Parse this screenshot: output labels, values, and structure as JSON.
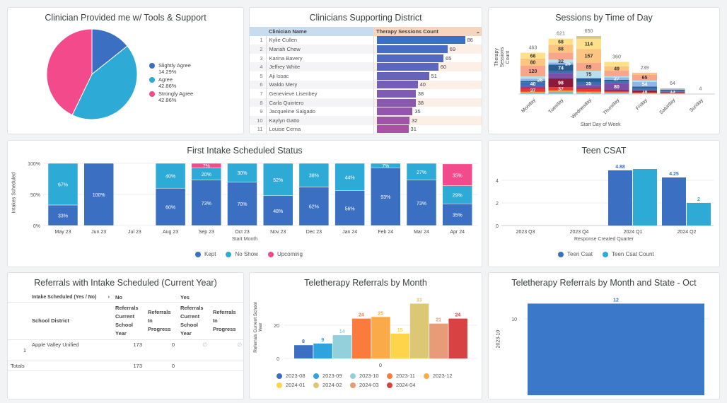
{
  "pie": {
    "title": "Clinician Provided me w/ Tools & Support",
    "slices": [
      {
        "label": "Slightly Agree",
        "pct": "14.29%",
        "value": 14.29,
        "color": "#3b6fc1"
      },
      {
        "label": "Agree",
        "pct": "42.86%",
        "value": 42.86,
        "color": "#2eaad6"
      },
      {
        "label": "Strongly Agree",
        "pct": "42.86%",
        "value": 42.86,
        "color": "#f24a8b"
      }
    ]
  },
  "clinicians": {
    "title": "Clinicians Supporting District",
    "col_name": "Clinician Name",
    "col_count": "Therapy Sessions Count",
    "sort_icon": "chevron-down-icon",
    "rows": [
      [
        "1",
        "Kylie Cullen",
        86
      ],
      [
        "2",
        "Mariah Chew",
        69
      ],
      [
        "3",
        "Karina Bavery",
        65
      ],
      [
        "4",
        "Jeffrey White",
        60
      ],
      [
        "5",
        "Aji Issac",
        51
      ],
      [
        "6",
        "Waldo Mery",
        40
      ],
      [
        "7",
        "Genevieve Lisenbey",
        38
      ],
      [
        "8",
        "Carla Quintero",
        38
      ],
      [
        "9",
        "Jacqueline Salgado",
        35
      ],
      [
        "10",
        "Kaylyn Gatto",
        32
      ],
      [
        "11",
        "Louise Cerna",
        31
      ]
    ]
  },
  "sessions": {
    "title": "Sessions by Time of Day",
    "ylabel": "Therapy Sessions Count",
    "xlabel": "Start Day of Week",
    "chart_data": {
      "type": "bar",
      "stacked": true,
      "categories": [
        "Monday",
        "Tuesday",
        "Wednesday",
        "Thursday",
        "Friday",
        "Saturday",
        "Sunday"
      ],
      "totals": [
        463,
        621,
        650,
        360,
        239,
        64,
        4
      ],
      "palette": [
        "#4fc3f7",
        "#f9a03f",
        "#e53935",
        "#8b1a3a",
        "#7b4fa8",
        "#3a6fb5",
        "#2a5d8f",
        "#8fb8e8",
        "#b9dfee",
        "#f8a58a",
        "#fbc480",
        "#fde08a",
        "#d9c77a"
      ],
      "segments": [
        [
          15,
          10,
          37,
          10,
          22,
          40,
          12,
          26,
          25,
          120,
          80,
          66,
          0
        ],
        [
          20,
          20,
          37,
          98,
          60,
          20,
          74,
          25,
          32,
          79,
          88,
          68,
          0
        ],
        [
          16,
          10,
          34,
          10,
          30,
          35,
          40,
          10,
          75,
          89,
          157,
          114,
          30
        ],
        [
          10,
          10,
          10,
          15,
          80,
          15,
          20,
          27,
          12,
          62,
          49,
          50,
          0
        ],
        [
          5,
          5,
          10,
          18,
          10,
          20,
          15,
          54,
          15,
          65,
          22,
          0,
          0
        ],
        [
          3,
          3,
          10,
          5,
          5,
          13,
          10,
          5,
          0,
          10,
          0,
          0,
          0
        ],
        [
          0,
          0,
          0,
          0,
          0,
          0,
          0,
          4,
          0,
          0,
          0,
          0,
          0
        ]
      ],
      "shown_labels": [
        [
          2,
          5,
          7,
          9,
          10,
          11
        ],
        [
          2,
          3,
          6,
          7,
          8,
          10,
          11
        ],
        [
          0,
          5,
          8,
          9,
          10,
          11
        ],
        [
          4,
          7,
          10
        ],
        [
          3,
          7,
          9
        ],
        [
          5
        ],
        []
      ]
    }
  },
  "intake": {
    "title": "First Intake Scheduled Status",
    "ylabel": "Intakes Scheduled",
    "xlabel": "Start Month",
    "yticks": [
      "100%",
      "50%",
      "0%"
    ],
    "chart_data": {
      "type": "bar",
      "stacked": true,
      "categories": [
        "May 23",
        "Jun 23",
        "Jul 23",
        "Aug 23",
        "Sep 23",
        "Oct 23",
        "Nov 23",
        "Dec 23",
        "Jan 24",
        "Feb 24",
        "Mar 24",
        "Apr 24"
      ],
      "series": [
        {
          "name": "Kept",
          "color": "#3b6fc1",
          "values": [
            33,
            100,
            0,
            60,
            73,
            70,
            48,
            62,
            56,
            93,
            73,
            35
          ]
        },
        {
          "name": "No Show",
          "color": "#2eaad6",
          "values": [
            67,
            0,
            0,
            40,
            20,
            30,
            52,
            38,
            44,
            7,
            27,
            29
          ]
        },
        {
          "name": "Upcoming",
          "color": "#f24a8b",
          "values": [
            0,
            0,
            0,
            0,
            7,
            0,
            0,
            0,
            0,
            0,
            0,
            35
          ]
        }
      ],
      "ylim": [
        0,
        100
      ]
    }
  },
  "csat": {
    "title": "Teen CSAT",
    "xlabel": "Response Created Quarter",
    "yticks": [
      "4",
      "2",
      "0"
    ],
    "chart_data": {
      "type": "bar",
      "categories": [
        "2023 Q3",
        "2023 Q4",
        "2024 Q1",
        "2024 Q2"
      ],
      "series": [
        {
          "name": "Teen Csat",
          "color": "#3b6fc1",
          "values": [
            null,
            null,
            4.88,
            4.25
          ],
          "labels": [
            "",
            "",
            "4.88",
            "4.25"
          ]
        },
        {
          "name": "Teen Csat Count",
          "color": "#2eaad6",
          "values": [
            null,
            null,
            5,
            2
          ],
          "labels": [
            "",
            "",
            "",
            "2"
          ]
        }
      ],
      "ylim": [
        0,
        5
      ]
    }
  },
  "referrals": {
    "title": "Referrals with Intake Scheduled (Current Year)",
    "pivot_label": "Intake Scheduled (Yes / No)",
    "pivot_icon": "chevron-right-icon",
    "no": "No",
    "yes": "Yes",
    "col_district": "School District",
    "col_current": "Referrals Current School Year",
    "col_progress": "Referrals In Progress",
    "rows": [
      {
        "idx": "1",
        "district": "Apple Valley Unified",
        "no_current": "173",
        "no_progress": "0",
        "yes_current": "∅",
        "yes_progress": "∅"
      }
    ],
    "totals_label": "Totals",
    "totals": {
      "no_current": "173",
      "no_progress": "0"
    }
  },
  "tele": {
    "title": "Teletherapy Referrals by Month",
    "ylabel": "Referrals Current School Year",
    "yticks": [
      "20",
      "0"
    ],
    "chart_data": {
      "type": "bar",
      "categories": [
        "0"
      ],
      "series": [
        {
          "name": "2023-08",
          "color": "#3b6fc1",
          "value": 8
        },
        {
          "name": "2023-09",
          "color": "#2ea3dd",
          "value": 9
        },
        {
          "name": "2023-10",
          "color": "#92d0dc",
          "value": 14
        },
        {
          "name": "2023-11",
          "color": "#fa7b3c",
          "value": 24
        },
        {
          "name": "2023-12",
          "color": "#fbaa4a",
          "value": 25
        },
        {
          "name": "2024-01",
          "color": "#fdd44a",
          "value": 15
        },
        {
          "name": "2024-02",
          "color": "#dcc775",
          "value": 33
        },
        {
          "name": "2024-03",
          "color": "#e89b77",
          "value": 21
        },
        {
          "name": "2024-04",
          "color": "#d84242",
          "value": 24
        }
      ],
      "ylim": [
        0,
        35
      ]
    }
  },
  "state": {
    "title": "Teletherapy Referrals by Month and State - Oct",
    "ylabel": "2023-10",
    "yticks": [
      "10"
    ],
    "chart_data": {
      "type": "bar",
      "categories": [
        ""
      ],
      "values": [
        12
      ],
      "labels": [
        "12"
      ],
      "color": "#3b78c9",
      "ylim": [
        0,
        13
      ]
    }
  }
}
